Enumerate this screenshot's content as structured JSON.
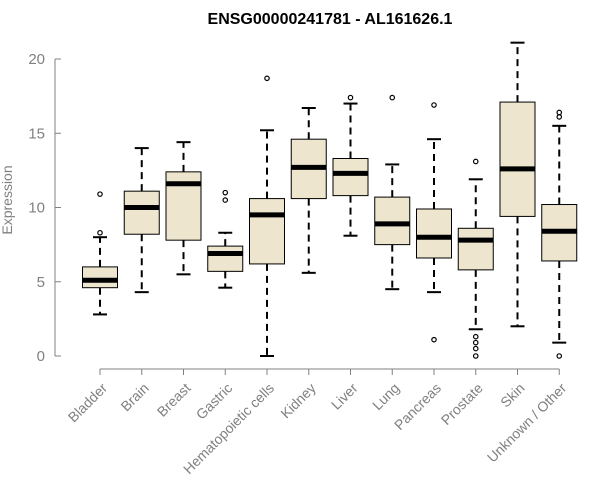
{
  "chart_data": {
    "type": "boxplot",
    "title": "ENSG00000241781 - AL161626.1",
    "xlabel": "",
    "ylabel": "Expression",
    "ylim": [
      0,
      21
    ],
    "yticks": [
      0,
      5,
      10,
      15,
      20
    ],
    "grid": false,
    "colors": {
      "box_fill": "#ede5cd",
      "box_stroke": "#000000",
      "axis": "#808080",
      "title": "#000000"
    },
    "categories": [
      "Bladder",
      "Brain",
      "Breast",
      "Gastric",
      "Hematopoietic cells",
      "Kidney",
      "Liver",
      "Lung",
      "Pancreas",
      "Prostate",
      "Skin",
      "Unknown / Other"
    ],
    "boxes": [
      {
        "name": "Bladder",
        "whisker_low": 2.8,
        "q1": 4.6,
        "median": 5.1,
        "q3": 6.0,
        "whisker_high": 8.0,
        "outliers": [
          10.9,
          8.3
        ]
      },
      {
        "name": "Brain",
        "whisker_low": 4.3,
        "q1": 8.2,
        "median": 10.0,
        "q3": 11.1,
        "whisker_high": 14.0,
        "outliers": []
      },
      {
        "name": "Breast",
        "whisker_low": 5.5,
        "q1": 7.8,
        "median": 11.6,
        "q3": 12.4,
        "whisker_high": 14.4,
        "outliers": []
      },
      {
        "name": "Gastric",
        "whisker_low": 4.6,
        "q1": 5.7,
        "median": 6.9,
        "q3": 7.4,
        "whisker_high": 8.3,
        "outliers": [
          11.0,
          10.5
        ]
      },
      {
        "name": "Hematopoietic cells",
        "whisker_low": 0.0,
        "q1": 6.2,
        "median": 9.5,
        "q3": 10.6,
        "whisker_high": 15.2,
        "outliers": [
          18.7
        ]
      },
      {
        "name": "Kidney",
        "whisker_low": 5.6,
        "q1": 10.6,
        "median": 12.7,
        "q3": 14.6,
        "whisker_high": 16.7,
        "outliers": []
      },
      {
        "name": "Liver",
        "whisker_low": 8.1,
        "q1": 10.8,
        "median": 12.3,
        "q3": 13.3,
        "whisker_high": 17.0,
        "outliers": [
          17.4
        ]
      },
      {
        "name": "Lung",
        "whisker_low": 4.5,
        "q1": 7.5,
        "median": 8.9,
        "q3": 10.7,
        "whisker_high": 12.9,
        "outliers": [
          17.4
        ]
      },
      {
        "name": "Pancreas",
        "whisker_low": 4.3,
        "q1": 6.6,
        "median": 8.0,
        "q3": 9.9,
        "whisker_high": 14.6,
        "outliers": [
          16.9,
          1.1
        ]
      },
      {
        "name": "Prostate",
        "whisker_low": 1.8,
        "q1": 5.8,
        "median": 7.8,
        "q3": 8.6,
        "whisker_high": 11.9,
        "outliers": [
          13.1,
          1.3,
          0.9,
          0.5,
          0.0
        ]
      },
      {
        "name": "Skin",
        "whisker_low": 2.0,
        "q1": 9.4,
        "median": 12.6,
        "q3": 17.1,
        "whisker_high": 21.1,
        "outliers": []
      },
      {
        "name": "Unknown / Other",
        "whisker_low": 0.9,
        "q1": 6.4,
        "median": 8.4,
        "q3": 10.2,
        "whisker_high": 15.5,
        "outliers": [
          16.4,
          16.1,
          0.0
        ]
      }
    ]
  }
}
